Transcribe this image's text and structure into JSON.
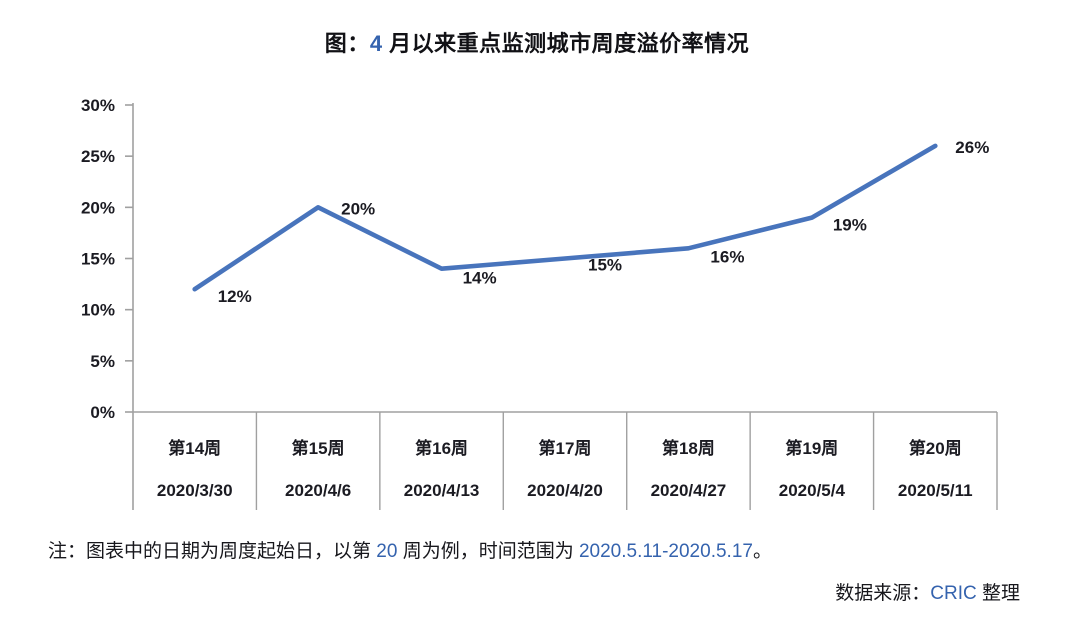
{
  "title": {
    "prefix": "图：",
    "highlight": "4",
    "suffix": " 月以来重点监测城市周度溢价率情况"
  },
  "chart_data": {
    "type": "line",
    "title": "图：4 月以来重点监测城市周度溢价率情况",
    "categories": [
      "第14周",
      "第15周",
      "第16周",
      "第17周",
      "第18周",
      "第19周",
      "第20周"
    ],
    "category_dates": [
      "2020/3/30",
      "2020/4/6",
      "2020/4/13",
      "2020/4/20",
      "2020/4/27",
      "2020/5/4",
      "2020/5/11"
    ],
    "values": [
      12,
      20,
      14,
      15,
      16,
      19,
      26
    ],
    "data_labels": [
      "12%",
      "20%",
      "14%",
      "15%",
      "16%",
      "19%",
      "26%"
    ],
    "ylabel": "",
    "xlabel": "",
    "ylim": [
      0,
      30
    ],
    "ytick_step": 5,
    "ytick_values": [
      0,
      5,
      10,
      15,
      20,
      25,
      30
    ],
    "ytick_labels": [
      "0%",
      "5%",
      "10%",
      "15%",
      "20%",
      "25%",
      "30%"
    ],
    "grid": false,
    "legend": false,
    "line_color": "#4874BC",
    "axis_color": "#A0A0A0",
    "label_color": "#1b1b22"
  },
  "note": {
    "prefix": "注：图表中的日期为周度起始日，以第 ",
    "week_num": "20",
    "middle": " 周为例，时间范围为 ",
    "range": "2020.5.11-2020.5.17",
    "suffix": "。"
  },
  "source": {
    "label": "数据来源：",
    "org": "CRIC",
    "suffix": " 整理"
  },
  "colors": {
    "accent_blue": "#3563AE",
    "line_blue": "#4874BC",
    "axis_gray": "#A0A0A0",
    "text": "#1b1b22"
  }
}
